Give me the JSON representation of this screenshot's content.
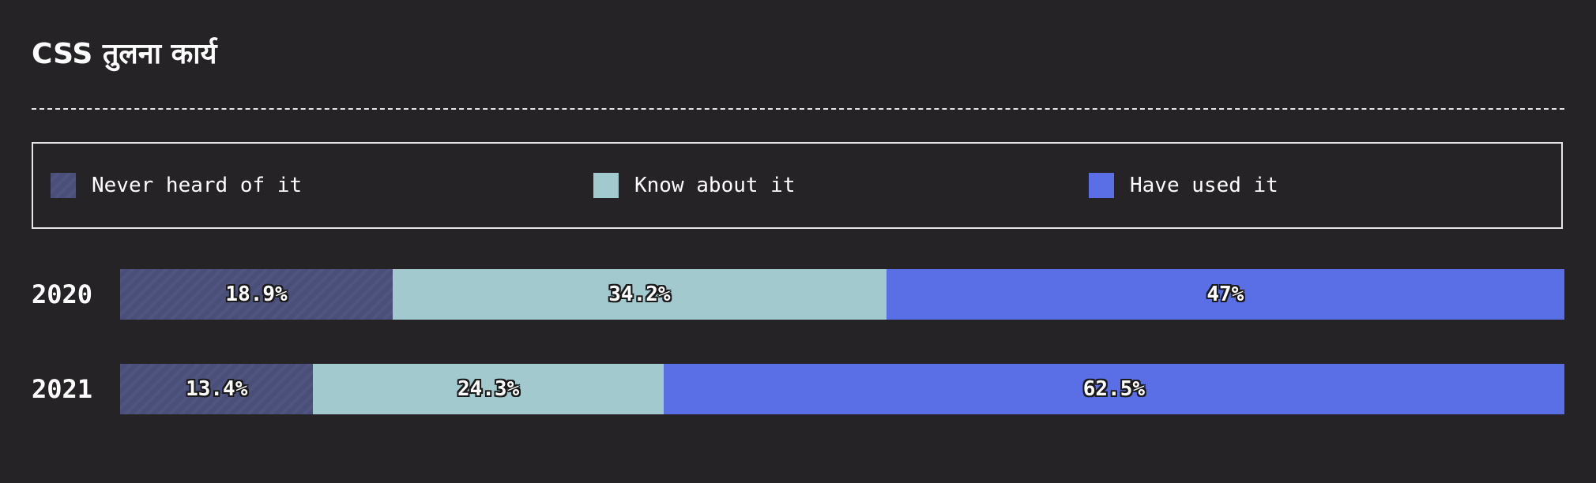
{
  "title": "CSS तुलना कार्य",
  "legend": [
    {
      "label": "Never heard of it",
      "color": "#4a4f79",
      "pattern": "diagonal-stripes"
    },
    {
      "label": "Know about it",
      "color": "#a1c9ce"
    },
    {
      "label": "Have used it",
      "color": "#5a6ee6"
    }
  ],
  "chart_data": {
    "type": "bar",
    "orientation": "horizontal",
    "stacked": true,
    "categories": [
      "2020",
      "2021"
    ],
    "series": [
      {
        "name": "Never heard of it",
        "values": [
          18.9,
          13.4
        ],
        "labels": [
          "18.9%",
          "13.4%"
        ],
        "color": "#4a4f79"
      },
      {
        "name": "Know about it",
        "values": [
          34.2,
          24.3
        ],
        "labels": [
          "34.2%",
          "24.3%"
        ],
        "color": "#a1c9ce"
      },
      {
        "name": "Have used it",
        "values": [
          47,
          62.5
        ],
        "labels": [
          "47%",
          "62.5%"
        ],
        "color": "#5a6ee6"
      }
    ],
    "legend_position": "top",
    "grid": false
  }
}
